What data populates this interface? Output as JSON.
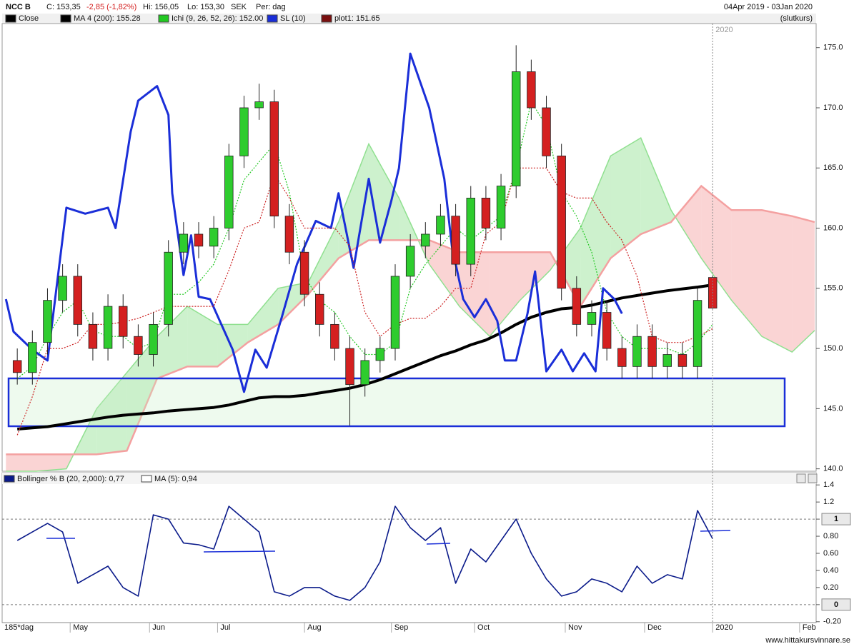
{
  "header": {
    "symbol": "NCC B",
    "close": "C: 153,35",
    "change": "-2,85 (-1,82%)",
    "high": "Hi: 156,05",
    "low": "Lo: 153,30",
    "currency": "SEK",
    "period": "Per: dag",
    "range": "04Apr 2019 - 03Jan 2020",
    "price_basis": "(slutkurs)"
  },
  "footer": "www.hittakursvinnare.se",
  "chart_data": [
    {
      "type": "candlestick",
      "x": [
        3,
        7,
        11,
        15,
        19,
        23,
        27,
        31,
        35,
        39,
        43,
        47,
        51,
        55,
        59,
        63,
        67,
        71,
        75,
        79,
        83,
        87,
        91,
        95,
        99,
        103,
        107,
        111,
        115,
        119,
        123,
        127,
        131,
        135,
        139,
        143,
        147,
        151,
        155,
        159,
        163,
        167,
        171,
        175,
        179,
        183,
        187
      ],
      "candles": {
        "name": "Close",
        "swatch": "#000000",
        "color_up": "#2ecc2e",
        "color_down": "#d42020",
        "open": [
          149,
          148,
          150.5,
          154,
          156,
          152,
          150,
          153.5,
          151,
          149.5,
          152,
          158,
          159.5,
          158.5,
          160,
          166,
          170,
          170.5,
          161,
          158,
          154.5,
          152,
          150,
          147,
          149,
          150,
          156,
          158.5,
          159.5,
          161,
          157,
          162.5,
          160,
          163.5,
          173,
          170,
          166,
          155,
          152,
          153,
          150,
          148.5,
          151,
          148.5,
          149.5,
          148.5,
          155.9
        ],
        "high": [
          150,
          151.5,
          155,
          157,
          157,
          153,
          154.5,
          154.5,
          152,
          153,
          159,
          160.5,
          160.5,
          161,
          167,
          171,
          172,
          171.5,
          162,
          159,
          155.5,
          153,
          151,
          150,
          151,
          157,
          159.5,
          160.5,
          162,
          162,
          163.5,
          163.5,
          164.5,
          175.2,
          174,
          171,
          167,
          156,
          154,
          154,
          151,
          152,
          152,
          150.5,
          150.5,
          155,
          156.05
        ],
        "low": [
          147,
          147,
          149.5,
          153,
          151,
          149,
          149,
          150,
          148.5,
          148.5,
          151,
          157,
          157.5,
          157.5,
          159,
          165,
          169,
          160,
          157,
          153.5,
          151,
          149,
          143.6,
          146,
          148,
          149,
          155,
          157.5,
          158.5,
          156,
          156,
          159,
          159,
          162.5,
          169,
          165,
          154,
          151,
          151,
          149,
          147.5,
          147.5,
          147.5,
          147.5,
          147.5,
          147.5,
          153.3
        ],
        "close": [
          148,
          150.5,
          154,
          156,
          152,
          150,
          153.5,
          151,
          149.5,
          152,
          158,
          159.5,
          158.5,
          160,
          166,
          170,
          170.5,
          161,
          158,
          154.5,
          152,
          150,
          147,
          149,
          150,
          156,
          158.5,
          159.5,
          161,
          157,
          162.5,
          160,
          163.5,
          173,
          170,
          166,
          155,
          152,
          153,
          150,
          148.5,
          151,
          148.5,
          149.5,
          148.5,
          154,
          153.35
        ]
      },
      "series": [
        {
          "name": "MA 4 (200): 155.28",
          "color": "#000000",
          "width": 4,
          "dashed": false,
          "values": [
            143.3,
            143.4,
            143.5,
            143.7,
            143.9,
            144.1,
            144.3,
            144.45,
            144.55,
            144.65,
            144.8,
            144.9,
            145.0,
            145.1,
            145.3,
            145.6,
            145.9,
            146.0,
            146.0,
            146.1,
            146.3,
            146.5,
            146.7,
            147.0,
            147.4,
            147.9,
            148.4,
            148.9,
            149.4,
            149.8,
            150.3,
            150.7,
            151.3,
            152.0,
            152.6,
            153.0,
            153.3,
            153.4,
            153.6,
            153.9,
            154.2,
            154.4,
            154.6,
            154.8,
            154.95,
            155.1,
            155.28
          ]
        },
        {
          "name": "Ichi (9, 26, 52, 26): 152.00",
          "color": "#22c822",
          "width": 1.2,
          "dashed": true,
          "values": [
            147.5,
            148.5,
            151,
            153,
            154,
            151.5,
            151,
            151,
            150,
            150.5,
            154.5,
            154.5,
            155.5,
            157,
            160,
            164,
            165.5,
            167,
            163,
            156,
            154,
            153,
            151,
            149.5,
            149.5,
            150.5,
            155,
            157,
            158.5,
            160,
            159,
            160,
            161,
            165,
            170.5,
            168.5,
            163,
            161,
            158,
            153,
            151,
            150,
            150,
            150,
            149.5,
            150.5,
            152
          ]
        },
        {
          "name": "SL (10)",
          "color": "#1a2ed8",
          "width": 3,
          "dashed": false,
          "x": [
            0,
            2,
            7,
            11,
            16,
            21,
            27,
            29,
            33,
            35,
            40,
            43,
            44,
            47,
            49,
            51,
            54,
            60,
            63,
            66,
            69,
            73,
            77,
            82,
            86,
            88,
            92,
            96,
            99,
            102,
            104,
            107,
            112,
            116,
            118,
            121,
            124,
            127,
            130,
            132,
            135,
            138,
            140,
            143,
            147,
            150,
            153,
            156,
            158,
            161,
            163
          ],
          "values": [
            154.1,
            151.4,
            149.9,
            149.0,
            161.7,
            161.2,
            161.7,
            160.0,
            168.0,
            170.6,
            171.8,
            169.4,
            162.9,
            156.1,
            159.4,
            154.3,
            154.1,
            149.9,
            146.4,
            149.9,
            148.4,
            152.6,
            157.0,
            160.6,
            160.0,
            162.9,
            156.7,
            164.1,
            158.8,
            162.3,
            165.0,
            174.5,
            170.0,
            164.1,
            158.5,
            154.1,
            152.6,
            154.1,
            152.3,
            149.0,
            149.0,
            152.9,
            156.4,
            148.1,
            149.9,
            148.1,
            149.6,
            148.1,
            155.0,
            154.1,
            152.9
          ]
        },
        {
          "name": "plot1: 151.65",
          "color": "#cc2020",
          "swatch": "#7a1010",
          "width": 1.2,
          "dashed": true,
          "values": [
            142.8,
            146,
            150,
            150,
            150.5,
            152,
            152,
            152.2,
            152.5,
            153.0,
            153.5,
            153.5,
            153.5,
            153.5,
            156.5,
            160,
            160.5,
            164.5,
            162.5,
            160,
            160,
            160,
            158.5,
            153,
            151,
            152,
            152.5,
            152.5,
            153.5,
            155,
            155,
            159.5,
            160.5,
            165,
            165,
            165,
            163,
            162.5,
            162.5,
            160.5,
            159,
            156,
            151,
            150.5,
            150.5,
            151,
            151.65
          ]
        }
      ],
      "cloud": {
        "color_up": "#90e090",
        "color_down": "#f4a0a0",
        "x": [
          0,
          8,
          16,
          24,
          32,
          40,
          48,
          56,
          64,
          72,
          80,
          88,
          96,
          104,
          112,
          120,
          128,
          136,
          144,
          152,
          160,
          168,
          176,
          184,
          192,
          200,
          208,
          214
        ],
        "span_a": [
          139.8,
          139.8,
          140,
          145,
          148,
          151,
          153.5,
          152,
          152,
          155,
          155.5,
          160.5,
          167,
          162.5,
          157,
          153.5,
          151,
          154,
          156.5,
          160,
          166,
          167.5,
          161.5,
          157.5,
          154,
          151,
          149.7,
          151.5
        ],
        "span_b": [
          141.2,
          141.2,
          141.2,
          141.2,
          141.5,
          147.5,
          148.5,
          148.5,
          150.5,
          152,
          154.5,
          157.5,
          159,
          159,
          159,
          158,
          158,
          158,
          158,
          153.5,
          157.5,
          159.5,
          160.5,
          163.5,
          161.5,
          161.5,
          161,
          160.5
        ]
      },
      "xlim": [
        -1,
        214
      ],
      "ylim": [
        139.8,
        177
      ],
      "yticks": [
        {
          "value": 140,
          "label": "140.0"
        },
        {
          "value": 145,
          "label": "145.0"
        },
        {
          "value": 150,
          "label": "150.0"
        },
        {
          "value": 155,
          "label": "155.0"
        },
        {
          "value": 160,
          "label": "160.0"
        },
        {
          "value": 165,
          "label": "165.0"
        },
        {
          "value": 170,
          "label": "170.0"
        },
        {
          "value": 175,
          "label": "175.0"
        }
      ]
    },
    {
      "type": "line",
      "period_label": "185*dag",
      "x": [
        3,
        7,
        11,
        15,
        19,
        23,
        27,
        31,
        35,
        39,
        43,
        47,
        51,
        55,
        59,
        63,
        67,
        71,
        75,
        79,
        83,
        87,
        91,
        95,
        99,
        103,
        107,
        111,
        115,
        119,
        123,
        127,
        131,
        135,
        139,
        143,
        147,
        151,
        155,
        159,
        163,
        167,
        171,
        175,
        179,
        183,
        187
      ],
      "series": [
        {
          "name": "Bollinger % B (20, 2,000): 0,77",
          "color": "#0a1a8a",
          "values": [
            0.75,
            0.85,
            0.95,
            0.85,
            0.25,
            0.35,
            0.45,
            0.2,
            0.1,
            1.05,
            1.0,
            0.72,
            0.7,
            0.65,
            1.15,
            1.0,
            0.85,
            0.15,
            0.1,
            0.2,
            0.2,
            0.1,
            0.05,
            0.2,
            0.5,
            1.15,
            0.9,
            0.75,
            0.9,
            0.25,
            0.65,
            0.5,
            0.75,
            1.0,
            0.6,
            0.3,
            0.1,
            0.15,
            0.3,
            0.25,
            0.15,
            0.45,
            0.25,
            0.35,
            0.3,
            1.1,
            0.77
          ]
        },
        {
          "name": "MA (5): 0,94",
          "color": "#ffffff"
        }
      ],
      "xlim": [
        -1,
        214
      ],
      "xticks": [
        {
          "value": 17,
          "label": "May"
        },
        {
          "value": 38,
          "label": "Jun"
        },
        {
          "value": 56,
          "label": "Jul"
        },
        {
          "value": 79,
          "label": "Aug"
        },
        {
          "value": 102,
          "label": "Sep"
        },
        {
          "value": 124,
          "label": "Oct"
        },
        {
          "value": 148,
          "label": "Nov"
        },
        {
          "value": 169,
          "label": "Dec"
        },
        {
          "value": 187,
          "label": "2020"
        },
        {
          "value": 210,
          "label": "Feb"
        }
      ],
      "year_tick": 8,
      "ylim": [
        -0.21,
        1.41
      ],
      "yticks": [
        1.4,
        1.2,
        1,
        {
          "value": 0.8,
          "label": "0.80"
        },
        {
          "value": 0.6,
          "label": "0.60"
        },
        {
          "value": 0.4,
          "label": "0.40"
        },
        {
          "value": 0.2,
          "label": "0.20"
        },
        0,
        {
          "value": -0.2,
          "label": "-0.20"
        }
      ],
      "reference_lines": [
        1,
        0
      ]
    }
  ]
}
